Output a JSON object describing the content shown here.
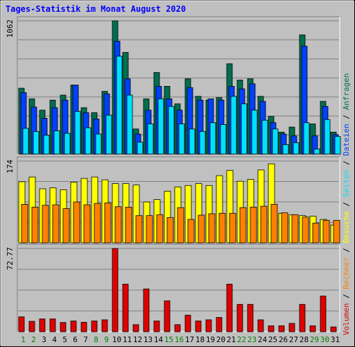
{
  "chart_data": {
    "type": "bar",
    "title": "Tages-Statistik im Monat August 2020",
    "categories": [
      "1",
      "2",
      "3",
      "4",
      "5",
      "6",
      "7",
      "8",
      "9",
      "10",
      "11",
      "12",
      "13",
      "14",
      "15",
      "16",
      "17",
      "18",
      "19",
      "20",
      "21",
      "22",
      "23",
      "24",
      "25",
      "26",
      "27",
      "28",
      "29",
      "30",
      "31"
    ],
    "weekend_days": [
      "1",
      "2",
      "8",
      "9",
      "15",
      "16",
      "22",
      "23",
      "29",
      "30"
    ],
    "panels": [
      {
        "id": "top",
        "ytick": "1062",
        "ymax": 1062,
        "series": [
          {
            "name": "Anfragen",
            "color": "#006f4f",
            "values": [
              525,
              440,
              350,
              430,
              470,
              550,
              370,
              330,
              500,
              1062,
              810,
              200,
              440,
              650,
              540,
              400,
              600,
              460,
              430,
              450,
              720,
              590,
              600,
              460,
              300,
              175,
              215,
              950,
              240,
              420,
              175
            ]
          },
          {
            "name": "Dateien",
            "color": "#0040ff",
            "values": [
              490,
              375,
              285,
              370,
              430,
              550,
              330,
              280,
              480,
              900,
              600,
              160,
              350,
              540,
              440,
              350,
              530,
              430,
              440,
              430,
              540,
              520,
              560,
              420,
              250,
              160,
              145,
              860,
              145,
              380,
              155
            ]
          },
          {
            "name": "Seiten",
            "color": "#00e0ff",
            "values": [
              205,
              180,
              150,
              185,
              165,
              340,
              210,
              160,
              310,
              780,
              470,
              95,
              240,
              440,
              380,
              240,
              200,
              180,
              250,
              235,
              460,
              400,
              350,
              270,
              200,
              75,
              90,
              250,
              40,
              275,
              140
            ]
          }
        ]
      },
      {
        "id": "middle",
        "ytick": "174",
        "ymax": 174,
        "series": [
          {
            "name": "Besuche",
            "color": "#ffff00",
            "values": [
              130,
              140,
              115,
              117,
              113,
              129,
              137,
              140,
              134,
              126,
              126,
              123,
              87,
              92,
              110,
              119,
              122,
              126,
              122,
              143,
              154,
              131,
              135,
              155,
              168,
              63,
              60,
              58,
              57,
              50,
              38
            ]
          },
          {
            "name": "Rechner",
            "color": "#ff8000",
            "values": [
              82,
              76,
              80,
              81,
              73,
              87,
              81,
              84,
              85,
              77,
              76,
              58,
              58,
              60,
              54,
              75,
              50,
              59,
              62,
              63,
              63,
              75,
              76,
              78,
              82,
              64,
              60,
              55,
              42,
              48,
              48
            ]
          }
        ]
      },
      {
        "id": "bottom",
        "ytick": "72.77",
        "ymax": 72.77,
        "series": [
          {
            "name": "Volumen",
            "color": "#e00000",
            "values": [
              13.0,
              9.1,
              11.2,
              11.2,
              8.1,
              9.4,
              8.3,
              9.4,
              10.4,
              72.77,
              41.6,
              6.2,
              37.4,
              9.4,
              27.0,
              6.2,
              14.5,
              9.4,
              10.4,
              12.5,
              41.6,
              23.9,
              23.9,
              10.4,
              5.2,
              5.2,
              7.3,
              23.9,
              5.2,
              31.2,
              4.2
            ]
          }
        ]
      }
    ],
    "legend": [
      {
        "text": "Volumen",
        "color": "#e00000"
      },
      {
        "text": "Rechner",
        "color": "#ff8000"
      },
      {
        "text": "Besuche",
        "color": "#ffff00"
      },
      {
        "text": "Seiten",
        "color": "#00e0ff"
      },
      {
        "text": "Dateien",
        "color": "#0040ff"
      },
      {
        "text": "Anfragen",
        "color": "#006f4f"
      }
    ],
    "legend_separator": " / ",
    "grid": true,
    "legend_position": "right-vertical"
  },
  "colors": {
    "background": "#c0c0c0",
    "plot_background": "#c0c0c0",
    "weekday_label": "#000000",
    "weekend_label": "#008000",
    "separator": "#000000",
    "title": "#0000ff"
  }
}
